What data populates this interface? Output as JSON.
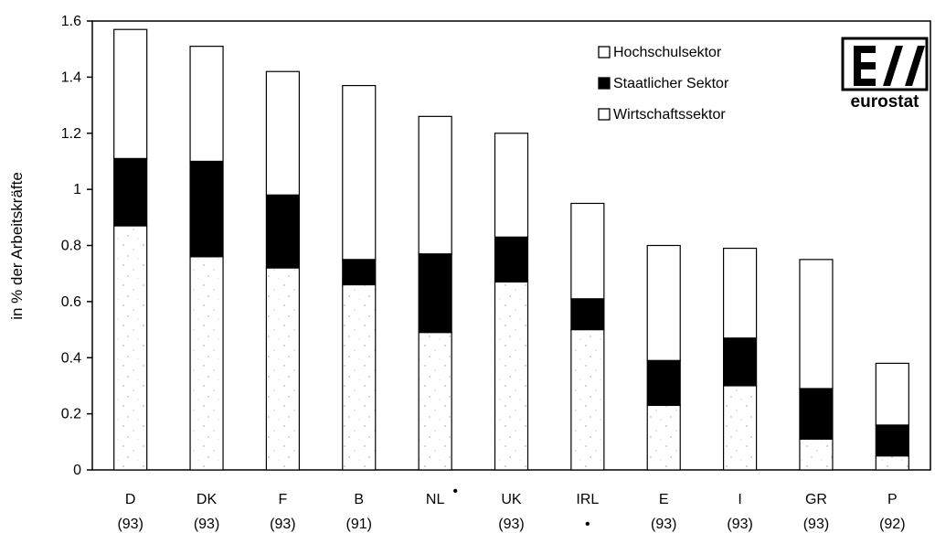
{
  "chart_data": {
    "type": "bar",
    "stacked": true,
    "ylabel": "in % der Arbeitskräfte",
    "xlabel": "",
    "ylim": [
      0,
      1.6
    ],
    "y_ticks": [
      "0",
      "0.2",
      "0.4",
      "0.6",
      "0.8",
      "1",
      "1.2",
      "1.4",
      "1.6"
    ],
    "y_tick_values": [
      0,
      0.2,
      0.4,
      0.6,
      0.8,
      1.0,
      1.2,
      1.4,
      1.6
    ],
    "categories": [
      "D",
      "DK",
      "F",
      "B",
      "NL",
      "UK",
      "IRL",
      "E",
      "I",
      "GR",
      "P"
    ],
    "category_marks": [
      "",
      "",
      "",
      "",
      "•",
      "",
      "",
      "",
      "",
      "",
      ""
    ],
    "years": [
      "(93)",
      "(93)",
      "(93)",
      "(91)",
      "",
      "(93)",
      "•",
      "(93)",
      "(93)",
      "(93)",
      "(92)"
    ],
    "series": [
      {
        "name": "Wirtschaftssektor",
        "values": [
          0.87,
          0.76,
          0.72,
          0.66,
          0.49,
          0.67,
          0.5,
          0.23,
          0.3,
          0.11,
          0.05
        ]
      },
      {
        "name": "Staatlicher Sektor",
        "values": [
          0.24,
          0.34,
          0.26,
          0.09,
          0.28,
          0.16,
          0.11,
          0.16,
          0.17,
          0.18,
          0.11
        ]
      },
      {
        "name": "Hochschulsektor",
        "values": [
          0.46,
          0.41,
          0.44,
          0.62,
          0.49,
          0.37,
          0.34,
          0.41,
          0.32,
          0.46,
          0.22
        ]
      }
    ],
    "legend": {
      "position": "top-right",
      "items": [
        "Hochschulsektor",
        "Staatlicher Sektor",
        "Wirtschaftssektor"
      ]
    },
    "colors": {
      "Hochschulsektor": "#ffffff",
      "Staatlicher Sektor": "#000000",
      "Wirtschaftssektor": "#ffffff"
    },
    "grid": false
  },
  "logo": {
    "text": "eurostat"
  }
}
